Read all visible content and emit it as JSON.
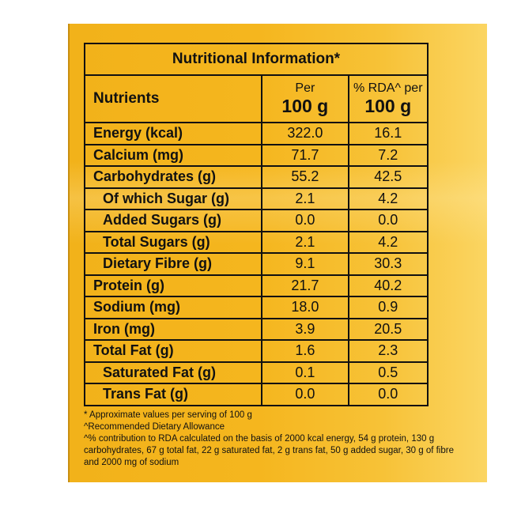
{
  "table": {
    "title": "Nutritional Information*",
    "header": {
      "nutrients": "Nutrients",
      "per_small": "Per",
      "per_big": "100 g",
      "rda_small": "% RDA^ per",
      "rda_big": "100 g"
    },
    "rows": [
      {
        "name": "Energy (kcal)",
        "per100": "322.0",
        "rda": "16.1",
        "sub": false
      },
      {
        "name": "Calcium (mg)",
        "per100": "71.7",
        "rda": "7.2",
        "sub": false
      },
      {
        "name": "Carbohydrates (g)",
        "per100": "55.2",
        "rda": "42.5",
        "sub": false
      },
      {
        "name": "Of which Sugar (g)",
        "per100": "2.1",
        "rda": "4.2",
        "sub": true
      },
      {
        "name": "Added Sugars (g)",
        "per100": "0.0",
        "rda": "0.0",
        "sub": true
      },
      {
        "name": "Total Sugars (g)",
        "per100": "2.1",
        "rda": "4.2",
        "sub": true
      },
      {
        "name": "Dietary Fibre (g)",
        "per100": "9.1",
        "rda": "30.3",
        "sub": true
      },
      {
        "name": "Protein (g)",
        "per100": "21.7",
        "rda": "40.2",
        "sub": false
      },
      {
        "name": "Sodium (mg)",
        "per100": "18.0",
        "rda": "0.9",
        "sub": false
      },
      {
        "name": "Iron (mg)",
        "per100": "3.9",
        "rda": "20.5",
        "sub": false
      },
      {
        "name": "Total Fat (g)",
        "per100": "1.6",
        "rda": "2.3",
        "sub": false
      },
      {
        "name": "Saturated Fat (g)",
        "per100": "0.1",
        "rda": "0.5",
        "sub": true
      },
      {
        "name": "Trans Fat (g)",
        "per100": "0.0",
        "rda": "0.0",
        "sub": true
      }
    ]
  },
  "footnotes": {
    "line1": "* Approximate values per serving of 100 g",
    "line2": "^Recommended Dietary Allowance",
    "line3": "^% contribution to RDA calculated on the basis of 2000 kcal energy, 54 g protein, 130 g carbohydrates, 67 g total fat, 22 g saturated fat, 2 g trans fat, 50 g added sugar, 30 g of fibre and 2000 mg of sodium"
  }
}
